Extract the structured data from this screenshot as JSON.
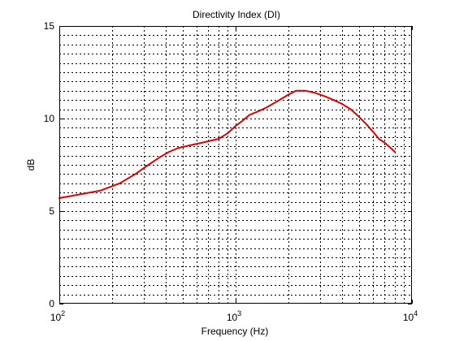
{
  "chart_data": {
    "type": "line",
    "title": "Directivity Index  (DI)",
    "xlabel": "Frequency (Hz)",
    "ylabel": "dB",
    "xscale": "log",
    "xlim": [
      100,
      10000
    ],
    "ylim": [
      0,
      15
    ],
    "grid": true,
    "x_ticks": [
      {
        "value": 100,
        "base": "10",
        "exp": "2"
      },
      {
        "value": 1000,
        "base": "10",
        "exp": "3"
      },
      {
        "value": 10000,
        "base": "10",
        "exp": "4"
      }
    ],
    "y_ticks": [
      {
        "value": 0,
        "label": "0"
      },
      {
        "value": 5,
        "label": "5"
      },
      {
        "value": 10,
        "label": "10"
      },
      {
        "value": 15,
        "label": "15"
      }
    ],
    "y_minor_step": 0.5,
    "series": [
      {
        "color": "#e00000",
        "x": [
          100,
          130,
          170,
          220,
          270,
          320,
          370,
          420,
          470,
          520,
          580,
          650,
          720,
          800,
          900,
          1000,
          1100,
          1200,
          1350,
          1500,
          1700,
          2000,
          2200,
          2500,
          2800,
          3200,
          3600,
          4000,
          4500,
          5000,
          5500,
          6000,
          6500,
          7000,
          8000
        ],
        "y": [
          5.7,
          5.9,
          6.1,
          6.5,
          7.0,
          7.5,
          7.9,
          8.2,
          8.4,
          8.5,
          8.6,
          8.7,
          8.8,
          8.9,
          9.2,
          9.6,
          9.9,
          10.2,
          10.4,
          10.6,
          10.9,
          11.3,
          11.5,
          11.5,
          11.4,
          11.2,
          11.0,
          10.8,
          10.5,
          10.1,
          9.7,
          9.3,
          8.9,
          8.7,
          8.2
        ]
      }
    ]
  }
}
